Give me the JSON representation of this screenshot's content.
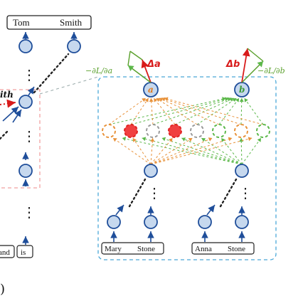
{
  "left_panel": {
    "top_tokens": [
      "Tom",
      "Smith"
    ],
    "highlight_word": "Smith",
    "highlight_word_fragment": "ith",
    "bottom_tokens": [
      "and",
      "is"
    ],
    "ellipsis": "⋮"
  },
  "zoom_panel": {
    "output_nodes": [
      {
        "label": "a",
        "delta": "Δa",
        "gradient": "−∂L/∂a",
        "color": "#e07a1f"
      },
      {
        "label": "b",
        "delta": "Δb",
        "gradient": "−∂L/∂b",
        "color": "#3a9a3a"
      }
    ],
    "hidden_layer_colors": [
      "#e8923a",
      "#e02020",
      "#9a9a9a",
      "#e02020",
      "#9a9a9a",
      "#5cb84a",
      "#e8923a",
      "#5cb84a"
    ],
    "input_groups": [
      {
        "tokens": [
          "Mary",
          "Stone"
        ]
      },
      {
        "tokens": [
          "Anna",
          "Stone"
        ]
      }
    ]
  },
  "caption_fragment": ")",
  "colors": {
    "node_fill": "#c6d8ee",
    "node_stroke": "#1f4e9a",
    "delta_red": "#d81b1b",
    "grad_green": "#5aa02c",
    "dashed_box": "#4aa8d8",
    "pink_box": "#f0a0a0"
  }
}
